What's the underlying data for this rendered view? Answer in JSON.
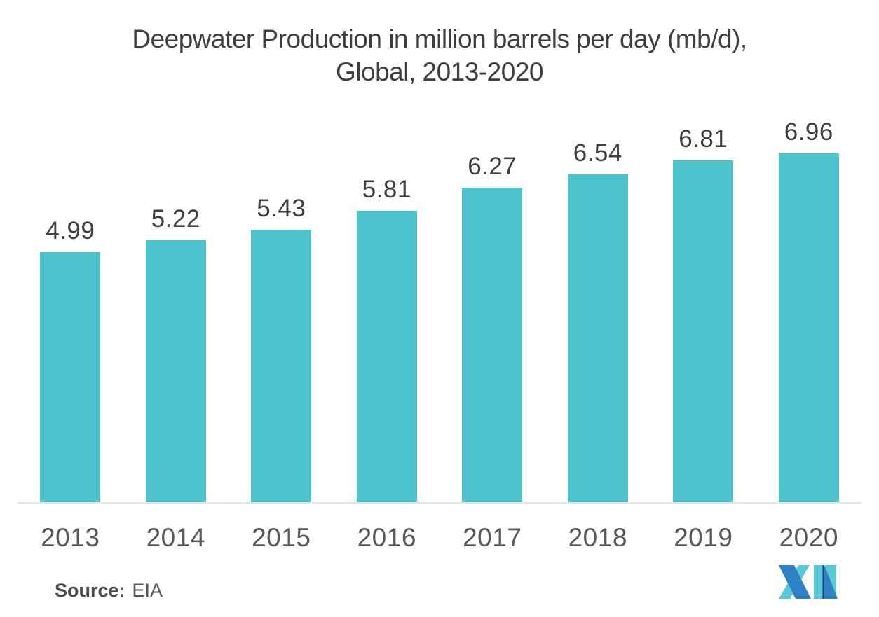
{
  "title": {
    "line1": "Deepwater Production in million barrels per day (mb/d),",
    "line2": "Global, 2013-2020"
  },
  "source": {
    "label": "Source:",
    "value": "EIA"
  },
  "colors": {
    "bar": "#4dc3cd",
    "title_text": "#3e3e40",
    "data_label_text": "#3f3f41",
    "axis_label_text": "#58595b",
    "axis_line": "#e3e4e5",
    "logo_blue": "#2e81c4",
    "logo_teal": "#5ac9d6",
    "logo_navy": "#17418c"
  },
  "chart_data": {
    "type": "bar",
    "title": "Deepwater Production in million barrels per day (mb/d), Global, 2013-2020",
    "categories": [
      "2013",
      "2014",
      "2015",
      "2016",
      "2017",
      "2018",
      "2019",
      "2020"
    ],
    "values": [
      4.99,
      5.22,
      5.43,
      5.81,
      6.27,
      6.54,
      6.81,
      6.96
    ],
    "data_labels": [
      "4.99",
      "5.22",
      "5.43",
      "5.81",
      "6.27",
      "6.54",
      "6.81",
      "6.96"
    ],
    "xlabel": "",
    "ylabel": "",
    "ylim": [
      0,
      7.5
    ],
    "grid": false,
    "legend": false,
    "bar_color": "#4dc3cd"
  }
}
